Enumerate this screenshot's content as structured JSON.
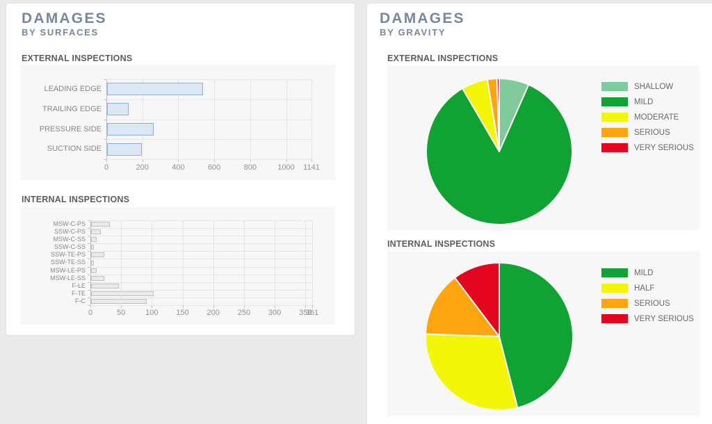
{
  "left_panel": {
    "title": "DAMAGES",
    "subtitle": "BY SURFACES"
  },
  "right_panel": {
    "title": "DAMAGES",
    "subtitle": "BY GRAVITY"
  },
  "colors": {
    "page_background": "#ebebeb",
    "card_background": "#ffffff",
    "chart_background": "#f7f7f7",
    "title_text": "#77889d",
    "section_text": "#5a5d61",
    "axis_text": "#8f9296"
  },
  "chart_data": [
    {
      "type": "bar",
      "title": "EXTERNAL INSPECTIONS",
      "orientation": "horizontal",
      "categories": [
        "LEADING EDGE",
        "TRAILING EDGE",
        "PRESSURE SIDE",
        "SUCTION SIDE"
      ],
      "values": [
        535,
        120,
        260,
        195
      ],
      "xlim": [
        0,
        1141
      ],
      "ticks": [
        0,
        200,
        400,
        600,
        800,
        1000,
        1141
      ],
      "grid": true,
      "bar_fill": "#dde7f4",
      "bar_border": "#91aed8"
    },
    {
      "type": "bar",
      "title": "INTERNAL INSPECTIONS",
      "orientation": "horizontal",
      "categories": [
        "MSW-C-PS",
        "SSW-C-PS",
        "MSW-C-SS",
        "SSW-C-SS",
        "SSW-TE-PS",
        "SSW-TE-SS",
        "MSW-LE-PS",
        "MSW-LE-SS",
        "F-LE",
        "F-TE",
        "F-C"
      ],
      "values": [
        31,
        16,
        9,
        5,
        22,
        5,
        9,
        22,
        45,
        102,
        90
      ],
      "xlim": [
        0,
        361
      ],
      "ticks": [
        0,
        50,
        100,
        150,
        200,
        250,
        300,
        350,
        361
      ],
      "grid": true,
      "bar_fill": "#eaeaea",
      "bar_border": "#c0c0c0"
    },
    {
      "type": "pie",
      "title": "EXTERNAL INSPECTIONS",
      "legend_position": "right",
      "slices": [
        {
          "label": "SHALLOW",
          "percent": 6.6,
          "color": "#80ca9c"
        },
        {
          "label": "MILD",
          "percent": 85.0,
          "color": "#10a233"
        },
        {
          "label": "MODERATE",
          "percent": 5.8,
          "color": "#f4f607"
        },
        {
          "label": "SERIOUS",
          "percent": 2.1,
          "color": "#fca511"
        },
        {
          "label": "VERY SERIOUS",
          "percent": 0.5,
          "color": "#e3041e"
        }
      ]
    },
    {
      "type": "pie",
      "title": "INTERNAL INSPECTIONS",
      "legend_position": "right",
      "slices": [
        {
          "label": "MILD",
          "percent": 46.0,
          "color": "#10a233"
        },
        {
          "label": "HALF",
          "percent": 29.5,
          "color": "#f4f607"
        },
        {
          "label": "SERIOUS",
          "percent": 14.2,
          "color": "#fca511"
        },
        {
          "label": "VERY SERIOUS",
          "percent": 10.3,
          "color": "#e3041e"
        }
      ]
    }
  ]
}
